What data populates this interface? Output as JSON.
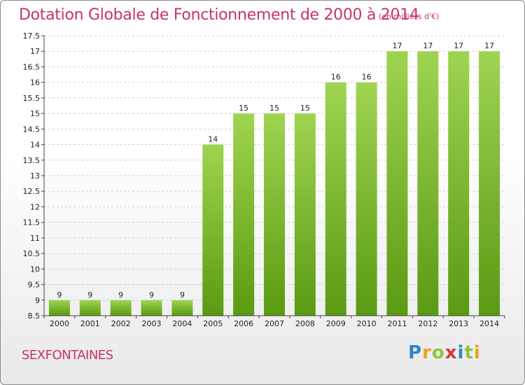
{
  "title": "Dotation Globale de Fonctionnement de 2000 à 2014",
  "subtitle": "(en milliers d'€)",
  "commune": "SEXFONTAINES",
  "logo": {
    "p": "P",
    "r": "r",
    "o": "o",
    "x": "x",
    "i1": "i",
    "t": "t",
    "i2": "i"
  },
  "colors": {
    "title": "#c8326f",
    "bar_top": "#9fd450",
    "bar_bottom": "#5a9a12",
    "grid": "#d0d0d0"
  },
  "chart_data": {
    "type": "bar",
    "categories": [
      "2000",
      "2001",
      "2002",
      "2003",
      "2004",
      "2005",
      "2006",
      "2007",
      "2008",
      "2009",
      "2010",
      "2011",
      "2012",
      "2013",
      "2014"
    ],
    "values": [
      9,
      9,
      9,
      9,
      9,
      14,
      15,
      15,
      15,
      16,
      16,
      17,
      17,
      17,
      17
    ],
    "yticks": [
      "8.5",
      "9",
      "9.5",
      "10",
      "10.5",
      "11",
      "11.5",
      "12",
      "12.5",
      "13",
      "13.5",
      "14",
      "14.5",
      "15",
      "15.5",
      "16",
      "16.5",
      "17",
      "17.5"
    ],
    "ylim": [
      8.5,
      17.5
    ],
    "grid": true,
    "legend": "none"
  }
}
